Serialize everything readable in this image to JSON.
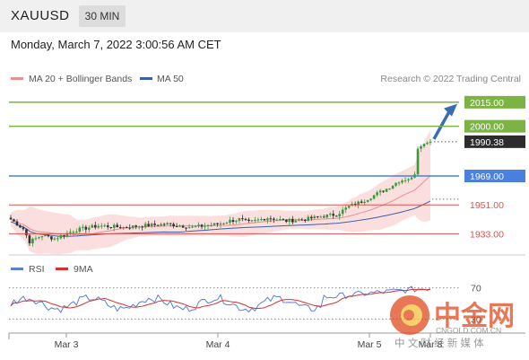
{
  "header": {
    "symbol": "XAUUSD",
    "timeframe": "30 MIN",
    "timestamp": "Monday, March 7, 2022 3:00:56 AM CET"
  },
  "credit": "Research © 2022 Trading Central",
  "watermark": {
    "brand": "中金网",
    "url": "CNGOLD.COM.CN",
    "tagline": "中 文 财 经 新 媒 体"
  },
  "colors": {
    "green": "#7cb342",
    "blue": "#4a7fe0",
    "red": "#d9534f",
    "ma20": "#e89090",
    "ma50": "#3a5fa8",
    "band_fill": "#fad4d4",
    "price_tag": "#2c2c2c",
    "arrow": "#3a6cb2",
    "rsi": "#5b7fd6",
    "rsi_ma": "#d9302c"
  },
  "chart_data": [
    {
      "type": "candlestick",
      "legend": [
        {
          "name": "MA 20 + Bollinger Bands",
          "color": "#e89090"
        },
        {
          "name": "MA 50",
          "color": "#3a5fa8"
        }
      ],
      "x_tick_labels": [
        "Mar 3",
        "Mar 4",
        "Mar 5",
        "Mar 8"
      ],
      "ylim": [
        1922,
        2025
      ],
      "levels": [
        {
          "value": 2015.0,
          "label": "2015.00",
          "color": "#7cb342",
          "style": "tag"
        },
        {
          "value": 2000.0,
          "label": "2000.00",
          "color": "#7cb342",
          "style": "tag"
        },
        {
          "value": 1990.38,
          "label": "1990.38",
          "color": "#2c2c2c",
          "style": "current"
        },
        {
          "value": 1969.0,
          "label": "1969.00",
          "color": "#4a7fe0",
          "style": "tag"
        },
        {
          "value": 1951.0,
          "label": "1951.00",
          "color": "#d9534f",
          "style": "text"
        },
        {
          "value": 1933.0,
          "label": "1933.00",
          "color": "#d9534f",
          "style": "text"
        }
      ],
      "grid": false
    },
    {
      "type": "line",
      "legend": [
        {
          "name": "RSI",
          "color": "#5b7fd6"
        },
        {
          "name": "9MA",
          "color": "#d9302c"
        }
      ],
      "ylim": [
        20,
        80
      ],
      "levels": [
        {
          "value": 70,
          "label": "70"
        },
        {
          "value": 30,
          "label": "30"
        }
      ]
    }
  ]
}
